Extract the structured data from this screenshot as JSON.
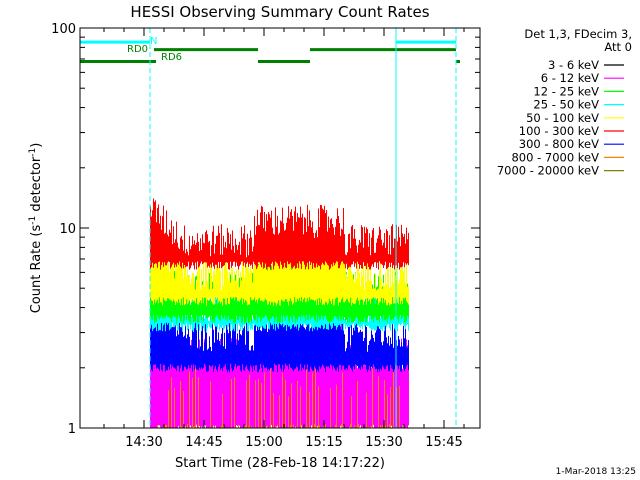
{
  "chart_data": {
    "type": "line",
    "title": "HESSI Observing Summary Count Rates",
    "xlabel": "Start Time (28-Feb-18 14:17:22)",
    "ylabel_main": "Count Rate (s",
    "ylabel_sup1": "-1",
    "ylabel_mid": " detector",
    "ylabel_sup2": "-1",
    "ylabel_end": ")",
    "y_scale": "log",
    "ylim": [
      1,
      100
    ],
    "xlim_minutes": [
      14.0,
      114.0
    ],
    "x_ticks": [
      {
        "label": "14:30",
        "minute": 30
      },
      {
        "label": "14:45",
        "minute": 45
      },
      {
        "label": "15:00",
        "minute": 60
      },
      {
        "label": "15:15",
        "minute": 75
      },
      {
        "label": "15:30",
        "minute": 90
      },
      {
        "label": "15:45",
        "minute": 105
      }
    ],
    "y_ticks": [
      {
        "label": "1",
        "value": 1
      },
      {
        "label": "10",
        "value": 10
      },
      {
        "label": "100",
        "value": 100
      }
    ],
    "legend_header": [
      "Det 1,3, FDecim 3,",
      "Att 0"
    ],
    "legend_placement": "right, outside plot",
    "series": [
      {
        "name": "3 - 6 keV",
        "color": "#000000"
      },
      {
        "name": "6 - 12 keV",
        "color": "#ff00ff"
      },
      {
        "name": "12 - 25 keV",
        "color": "#00ff00"
      },
      {
        "name": "25 - 50 keV",
        "color": "#00ffff"
      },
      {
        "name": "50 - 100 keV",
        "color": "#ffff00"
      },
      {
        "name": "100 - 300 keV",
        "color": "#ff0000"
      },
      {
        "name": "300 - 800 keV",
        "color": "#0000ff"
      },
      {
        "name": "800 - 7000 keV",
        "color": "#ff8000"
      },
      {
        "name": "7000 - 20000 keV",
        "color": "#808000"
      }
    ],
    "data_span_minutes": [
      31.5,
      96.0
    ],
    "band_levels": [
      {
        "color": "#ff0000",
        "low": 6.5,
        "high": 9.5,
        "early_peak": 13.5
      },
      {
        "color": "#ffff00",
        "low": 4.3,
        "high": 6.5,
        "early_peak": 10
      },
      {
        "color": "#00ff00",
        "low": 3.5,
        "high": 5.5,
        "early_peak": 8
      },
      {
        "color": "#00ffff",
        "low": 3.2,
        "high": 4.5,
        "early_peak": 7
      },
      {
        "color": "#0000ff",
        "low": 2.0,
        "high": 3.2,
        "early_peak": 5
      },
      {
        "color": "#ff00ff",
        "low": 1.0,
        "high": 2.6,
        "early_peak": 3
      },
      {
        "color": "#ff8000",
        "low": 1.0,
        "high": 2.0,
        "early_peak": 3
      }
    ],
    "state_bars": [
      {
        "label": "N",
        "color": "#00ffff",
        "value": 85,
        "segments": [
          [
            14.0,
            31.5
          ],
          [
            93.0,
            108.0
          ]
        ]
      },
      {
        "label": "RD0",
        "color": "#008000",
        "value": 78,
        "segments": [
          [
            32.5,
            58.5
          ],
          [
            71.5,
            108.0
          ]
        ]
      },
      {
        "label": "RD6",
        "color": "#008000",
        "value": 68,
        "segments": [
          [
            14.0,
            33.0
          ],
          [
            58.5,
            71.5
          ],
          [
            108.0,
            109.0
          ]
        ]
      }
    ],
    "vertical_markers": [
      {
        "minute": 14.0,
        "style": "solid",
        "color": "#00ffff"
      },
      {
        "minute": 31.5,
        "style": "dashed",
        "color": "#00ffff"
      },
      {
        "minute": 93.0,
        "style": "solid",
        "color": "#00ffff"
      },
      {
        "minute": 108.0,
        "style": "dashed",
        "color": "#00ffff"
      }
    ],
    "timestamp": "1-Mar-2018 13:25"
  }
}
